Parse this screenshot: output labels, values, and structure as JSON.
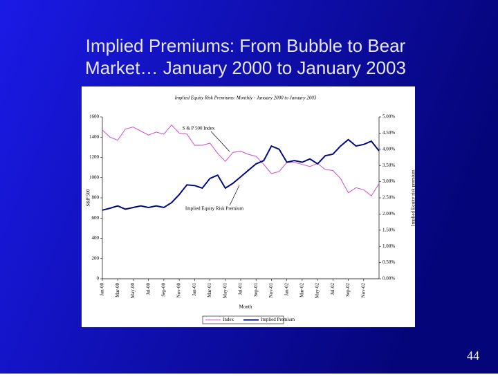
{
  "slide": {
    "title": [
      "Implied Premiums: From Bubble to Bear",
      "Market… January 2000 to January 2003"
    ],
    "page_number": 44
  },
  "chart_data": {
    "type": "line",
    "title": "Implied Equity Risk Premiums: Monthly - January 2000 to January 2003",
    "x_label": "Month",
    "y_label": "S&P 500",
    "y2_label": "Implied Equity risk premium",
    "categories": [
      "Jan-00",
      null,
      "Mar-00",
      null,
      "May-00",
      null,
      "Jul-00",
      null,
      "Sep-00",
      null,
      "Nov-00",
      null,
      "Jan-01",
      null,
      "Mar-01",
      null,
      "May-01",
      null,
      "Jul-01",
      null,
      "Sep-01",
      null,
      "Nov-01",
      null,
      "Jan-02",
      null,
      "Mar-02",
      null,
      "May-02",
      null,
      "Jul-02",
      null,
      "Sep-02",
      null,
      "Nov-02",
      null,
      null
    ],
    "series": [
      {
        "name": "Index",
        "color": "#d04ad0",
        "axis": "y",
        "values": [
          1470,
          1400,
          1370,
          1480,
          1500,
          1460,
          1420,
          1450,
          1430,
          1520,
          1440,
          1430,
          1320,
          1320,
          1340,
          1240,
          1160,
          1250,
          1260,
          1230,
          1210,
          1130,
          1040,
          1060,
          1150,
          1150,
          1130,
          1110,
          1140,
          1080,
          1070,
          990,
          850,
          900,
          880,
          820,
          940
        ]
      },
      {
        "name": "Implied Premium",
        "color": "#000a80",
        "axis": "y2",
        "values": [
          2.12,
          2.18,
          2.25,
          2.15,
          2.2,
          2.25,
          2.2,
          2.25,
          2.2,
          2.35,
          2.6,
          2.9,
          2.88,
          2.8,
          3.1,
          3.2,
          2.8,
          2.95,
          3.15,
          3.35,
          3.55,
          3.65,
          4.1,
          4.0,
          3.6,
          3.65,
          3.6,
          3.7,
          3.55,
          3.8,
          3.85,
          4.1,
          4.3,
          4.1,
          4.15,
          4.25,
          3.95
        ]
      }
    ],
    "annotations": [
      "S & P 500 Index",
      "Implied Equity Risk Premium"
    ],
    "ylim": [
      0,
      1600
    ],
    "yticks": [
      0,
      200,
      400,
      600,
      800,
      1000,
      1200,
      1400,
      1600
    ],
    "y2lim": [
      0,
      5
    ],
    "y2ticks": [
      {
        "value": 0,
        "label": "0.00%"
      },
      {
        "value": 0.5,
        "label": "0.50%"
      },
      {
        "value": 1,
        "label": "1.00%"
      },
      {
        "value": 1.5,
        "label": "1.50%"
      },
      {
        "value": 2,
        "label": "2.00%"
      },
      {
        "value": 2.5,
        "label": "2.50%"
      },
      {
        "value": 3,
        "label": "3.00%"
      },
      {
        "value": 3.5,
        "label": "3.50%"
      },
      {
        "value": 4,
        "label": "4.00%"
      },
      {
        "value": 4.5,
        "label": "4.50%"
      },
      {
        "value": 5,
        "label": "5.00%"
      }
    ],
    "legend": "bottom"
  }
}
